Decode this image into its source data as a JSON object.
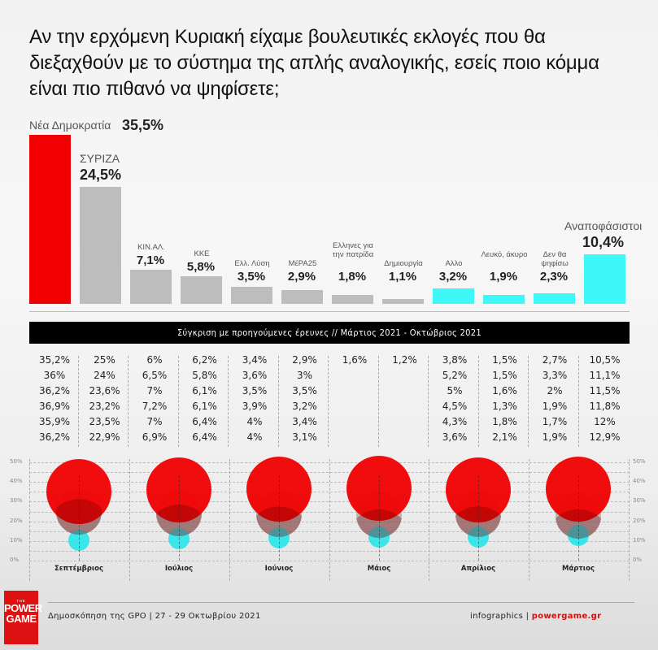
{
  "title": "Αν την ερχόμενη Κυριακή είχαμε βουλευτικές εκλογές που θα διεξαχθούν με το σύστημα της απλής αναλογικής, εσείς ποιο κόμμα είναι πιο πιθανό να ψηφίσετε;",
  "colors": {
    "nd": "#f00000",
    "party": "#bdbdbd",
    "other": "#40f7f7",
    "banner": "#000000",
    "brand": "#dd1111"
  },
  "bars": [
    {
      "label": "Νέα Δημοκρατία",
      "value_text": "35,5%",
      "value": 35.5,
      "color": "#f00000"
    },
    {
      "label": "ΣΥΡΙΖΑ",
      "value_text": "24,5%",
      "value": 24.5,
      "color": "#bdbdbd"
    },
    {
      "label": "ΚΙΝ.ΑΛ.",
      "value_text": "7,1%",
      "value": 7.1,
      "color": "#bdbdbd"
    },
    {
      "label": "ΚΚΕ",
      "value_text": "5,8%",
      "value": 5.8,
      "color": "#bdbdbd"
    },
    {
      "label": "Ελλ. Λύση",
      "value_text": "3,5%",
      "value": 3.5,
      "color": "#bdbdbd"
    },
    {
      "label": "ΜέΡΑ25",
      "value_text": "2,9%",
      "value": 2.9,
      "color": "#bdbdbd"
    },
    {
      "label": "Ελληνες για την πατρίδα",
      "value_text": "1,8%",
      "value": 1.8,
      "color": "#bdbdbd"
    },
    {
      "label": "Δημιουργία",
      "value_text": "1,1%",
      "value": 1.1,
      "color": "#bdbdbd"
    },
    {
      "label": "Αλλο",
      "value_text": "3,2%",
      "value": 3.2,
      "color": "#40f7f7"
    },
    {
      "label": "Λευκό, άκυρο",
      "value_text": "1,9%",
      "value": 1.9,
      "color": "#40f7f7"
    },
    {
      "label": "Δεν θα ψηφίσω",
      "value_text": "2,3%",
      "value": 2.3,
      "color": "#40f7f7"
    },
    {
      "label": "Αναποφάσιστοι",
      "value_text": "10,4%",
      "value": 10.4,
      "color": "#40f7f7"
    }
  ],
  "banner": "Σύγκριση με προηγούμενες έρευνες // Μάρτιος 2021 - Οκτώβριος 2021",
  "comparison_table": {
    "columns": [
      [
        "35,2%",
        "36%",
        "36,2%",
        "36,9%",
        "35,9%",
        "36,2%"
      ],
      [
        "25%",
        "24%",
        "23,6%",
        "23,2%",
        "23,5%",
        "22,9%"
      ],
      [
        "6%",
        "6,5%",
        "7%",
        "7,2%",
        "7%",
        "6,9%"
      ],
      [
        "6,2%",
        "5,8%",
        "6,1%",
        "6,1%",
        "6,4%",
        "6,4%"
      ],
      [
        "3,4%",
        "3,6%",
        "3,5%",
        "3,9%",
        "4%",
        "4%"
      ],
      [
        "2,9%",
        "3%",
        "3,5%",
        "3,2%",
        "3,4%",
        "3,1%"
      ],
      [
        "1,6%"
      ],
      [
        "1,2%"
      ],
      [
        "3,8%",
        "5,2%",
        "5%",
        "4,5%",
        "4,3%",
        "3,6%"
      ],
      [
        "1,5%",
        "1,5%",
        "1,6%",
        "1,3%",
        "1,8%",
        "2,1%"
      ],
      [
        "2,7%",
        "3,3%",
        "2%",
        "1,9%",
        "1,7%",
        "1,9%"
      ],
      [
        "10,5%",
        "11,1%",
        "11,5%",
        "11,8%",
        "12%",
        "12,9%"
      ]
    ]
  },
  "bubble_chart": {
    "y_ticks": [
      "50%",
      "40%",
      "30%",
      "20%",
      "10%",
      "0%"
    ],
    "months": [
      "Σεπτέμβριος",
      "Ιούλιος",
      "Ιούνιος",
      "Μάιος",
      "Απρίλιος",
      "Μάρτιος"
    ]
  },
  "footer": {
    "logo_the": "THE",
    "logo_line1": "POWER",
    "logo_line2": "GAME",
    "source": "Δημοσκόπηση της GPO | 27 - 29 Οκτωβρίου 2021",
    "credit_prefix": "infographics | ",
    "credit_site": "powergame.gr"
  },
  "chart_data": [
    {
      "type": "bar",
      "title": "Αν την ερχόμενη Κυριακή είχαμε βουλευτικές εκλογές που θα διεξαχθούν με το σύστημα της απλής αναλογικής, εσείς ποιο κόμμα είναι πιο πιθανό να ψηφίσετε;",
      "categories": [
        "Νέα Δημοκρατία",
        "ΣΥΡΙΖΑ",
        "ΚΙΝ.ΑΛ.",
        "ΚΚΕ",
        "Ελλ. Λύση",
        "ΜέΡΑ25",
        "Ελληνες για την πατρίδα",
        "Δημιουργία",
        "Αλλο",
        "Λευκό, άκυρο",
        "Δεν θα ψηφίσω",
        "Αναποφάσιστοι"
      ],
      "values": [
        35.5,
        24.5,
        7.1,
        5.8,
        3.5,
        2.9,
        1.8,
        1.1,
        3.2,
        1.9,
        2.3,
        10.4
      ],
      "xlabel": "",
      "ylabel": "%",
      "grid": false
    },
    {
      "type": "table",
      "title": "Σύγκριση με προηγούμενες έρευνες // Μάρτιος 2021 - Οκτώβριος 2021",
      "categories": [
        "Νέα Δημοκρατία",
        "ΣΥΡΙΖΑ",
        "ΚΙΝ.ΑΛ.",
        "ΚΚΕ",
        "Ελλ. Λύση",
        "ΜέΡΑ25",
        "Ελληνες για την πατρίδα",
        "Δημιουργία",
        "Αλλο",
        "Λευκό, άκυρο",
        "Δεν θα ψηφίσω",
        "Αναποφάσιστοι"
      ],
      "series": [
        {
          "name": "Νέα Δημοκρατία",
          "values": [
            35.2,
            36,
            36.2,
            36.9,
            35.9,
            36.2
          ]
        },
        {
          "name": "ΣΥΡΙΖΑ",
          "values": [
            25,
            24,
            23.6,
            23.2,
            23.5,
            22.9
          ]
        },
        {
          "name": "ΚΙΝ.ΑΛ.",
          "values": [
            6,
            6.5,
            7,
            7.2,
            7,
            6.9
          ]
        },
        {
          "name": "ΚΚΕ",
          "values": [
            6.2,
            5.8,
            6.1,
            6.1,
            6.4,
            6.4
          ]
        },
        {
          "name": "Ελλ. Λύση",
          "values": [
            3.4,
            3.6,
            3.5,
            3.9,
            4,
            4
          ]
        },
        {
          "name": "ΜέΡΑ25",
          "values": [
            2.9,
            3,
            3.5,
            3.2,
            3.4,
            3.1
          ]
        },
        {
          "name": "Ελληνες για την πατρίδα",
          "values": [
            1.6
          ]
        },
        {
          "name": "Δημιουργία",
          "values": [
            1.2
          ]
        },
        {
          "name": "Αλλο",
          "values": [
            3.8,
            5.2,
            5,
            4.5,
            4.3,
            3.6
          ]
        },
        {
          "name": "Λευκό, άκυρο",
          "values": [
            1.5,
            1.5,
            1.6,
            1.3,
            1.8,
            2.1
          ]
        },
        {
          "name": "Δεν θα ψηφίσω",
          "values": [
            2.7,
            3.3,
            2,
            1.9,
            1.7,
            1.9
          ]
        },
        {
          "name": "Αναποφάσιστοι",
          "values": [
            10.5,
            11.1,
            11.5,
            11.8,
            12,
            12.9
          ]
        }
      ]
    },
    {
      "type": "scatter",
      "title": "Bubble comparison by month",
      "x": [
        "Σεπτέμβριος",
        "Ιούλιος",
        "Ιούνιος",
        "Μάιος",
        "Απρίλιος",
        "Μάρτιος"
      ],
      "series": [
        {
          "name": "Νέα Δημοκρατία",
          "color": "#f00000",
          "values": [
            35.2,
            36,
            36.2,
            36.9,
            35.9,
            36.2
          ]
        },
        {
          "name": "ΣΥΡΙΖΑ",
          "color": "#999999",
          "values": [
            25,
            24,
            23.6,
            23.2,
            23.5,
            22.9
          ]
        },
        {
          "name": "Αναποφάσιστοι",
          "color": "#28e6eb",
          "values": [
            10.5,
            11.1,
            11.5,
            11.8,
            12,
            12.9
          ]
        }
      ],
      "ylim": [
        0,
        50
      ],
      "y_ticks": [
        "0%",
        "10%",
        "20%",
        "30%",
        "40%",
        "50%"
      ],
      "grid": true
    }
  ]
}
